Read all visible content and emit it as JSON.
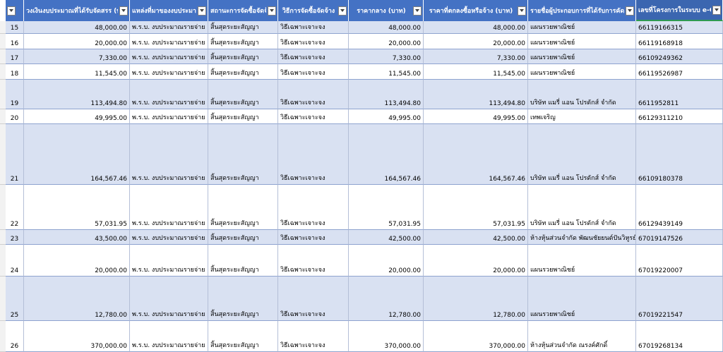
{
  "columns": [
    {
      "key": "budget",
      "label": "วงเงินงบประมาณที่ได้รับจัดสรร (บาท)",
      "align": "r"
    },
    {
      "key": "source",
      "label": "แหล่งที่มาของงบประมาณ",
      "align": "l"
    },
    {
      "key": "status",
      "label": "สถานะการจัดซื้อจัดจ้าง",
      "align": "l"
    },
    {
      "key": "method",
      "label": "วิธีการจัดซื้อจัดจ้าง",
      "align": "l"
    },
    {
      "key": "median",
      "label": "ราคากลาง (บาท)",
      "align": "r"
    },
    {
      "key": "agreed",
      "label": "ราคาที่ตกลงซื้อหรือจ้าง (บาท)",
      "align": "r"
    },
    {
      "key": "vendor",
      "label": "รายชื่อผู้ประกอบการที่ได้รับการคัดเลือก",
      "align": "l"
    },
    {
      "key": "egp",
      "label": "เลขที่โครงการในระบบ e-GP",
      "align": "l"
    }
  ],
  "rows": [
    {
      "no": "15",
      "budget": "48,000.00",
      "source": "พ.ร.บ. งบประมาณรายจ่าย",
      "status": "สิ้นสุดระยะสัญญา",
      "method": "วิธีเฉพาะเจาะจง",
      "median": "48,000.00",
      "agreed": "48,000.00",
      "vendor": "แผนรวยพาณิชย์",
      "egp": "66119166315"
    },
    {
      "no": "16",
      "budget": "20,000.00",
      "source": "พ.ร.บ. งบประมาณรายจ่าย",
      "status": "สิ้นสุดระยะสัญญา",
      "method": "วิธีเฉพาะเจาะจง",
      "median": "20,000.00",
      "agreed": "20,000.00",
      "vendor": "แผนรวยพาณิชย์",
      "egp": "66119168918"
    },
    {
      "no": "17",
      "budget": "7,330.00",
      "source": "พ.ร.บ. งบประมาณรายจ่าย",
      "status": "สิ้นสุดระยะสัญญา",
      "method": "วิธีเฉพาะเจาะจง",
      "median": "7,330.00",
      "agreed": "7,330.00",
      "vendor": "แผนรวยพาณิชย์",
      "egp": "66109249362"
    },
    {
      "no": "18",
      "budget": "11,545.00",
      "source": "พ.ร.บ. งบประมาณรายจ่าย",
      "status": "สิ้นสุดระยะสัญญา",
      "method": "วิธีเฉพาะเจาะจง",
      "median": "11,545.00",
      "agreed": "11,545.00",
      "vendor": "แผนรวยพาณิชย์",
      "egp": "66119526987"
    },
    {
      "no": "19",
      "budget": "113,494.80",
      "source": "พ.ร.บ. งบประมาณรายจ่าย",
      "status": "สิ้นสุดระยะสัญญา",
      "method": "วิธีเฉพาะเจาะจง",
      "median": "113,494.80",
      "agreed": "113,494.80",
      "vendor": "บริษัท แมรี่ แอน โปรดักส์ จำกัด",
      "egp": "6611952811"
    },
    {
      "no": "20",
      "budget": "49,995.00",
      "source": "พ.ร.บ. งบประมาณรายจ่าย",
      "status": "สิ้นสุดระยะสัญญา",
      "method": "วิธีเฉพาะเจาะจง",
      "median": "49,995.00",
      "agreed": "49,995.00",
      "vendor": "เทพเจริญ",
      "egp": "66129311210"
    },
    {
      "no": "21",
      "budget": "164,567.46",
      "source": "พ.ร.บ. งบประมาณรายจ่าย",
      "status": "สิ้นสุดระยะสัญญา",
      "method": "วิธีเฉพาะเจาะจง",
      "median": "164,567.46",
      "agreed": "164,567.46",
      "vendor": "บริษัท แมรี่ แอน โปรดักส์ จำกัด",
      "egp": "66109180378"
    },
    {
      "no": "22",
      "budget": "57,031.95",
      "source": "พ.ร.บ. งบประมาณรายจ่าย",
      "status": "สิ้นสุดระยะสัญญา",
      "method": "วิธีเฉพาะเจาะจง",
      "median": "57,031.95",
      "agreed": "57,031.95",
      "vendor": "บริษัท แมรี่ แอน โปรดักส์ จำกัด",
      "egp": "66129439149"
    },
    {
      "no": "23",
      "budget": "43,500.00",
      "source": "พ.ร.บ. งบประมาณรายจ่าย",
      "status": "สิ้นสุดระยะสัญญา",
      "method": "วิธีเฉพาะเจาะจง",
      "median": "42,500.00",
      "agreed": "42,500.00",
      "vendor": "ห้างหุ้นส่วนจำกัด พัฒนชัยยนต์ปันวิหูรย์",
      "egp": "67019147526"
    },
    {
      "no": "24",
      "budget": "20,000.00",
      "source": "พ.ร.บ. งบประมาณรายจ่าย",
      "status": "สิ้นสุดระยะสัญญา",
      "method": "วิธีเฉพาะเจาะจง",
      "median": "20,000.00",
      "agreed": "20,000.00",
      "vendor": "แผนรวยพาณิชย์",
      "egp": "67019220007"
    },
    {
      "no": "25",
      "budget": "12,780.00",
      "source": "พ.ร.บ. งบประมาณรายจ่าย",
      "status": "สิ้นสุดระยะสัญญา",
      "method": "วิธีเฉพาะเจาะจง",
      "median": "12,780.00",
      "agreed": "12,780.00",
      "vendor": "แผนรวยพาณิชย์",
      "egp": "67019221547"
    },
    {
      "no": "26",
      "budget": "370,000.00",
      "source": "พ.ร.บ. งบประมาณรายจ่าย",
      "status": "สิ้นสุดระยะสัญญา",
      "method": "วิธีเฉพาะเจาะจง",
      "median": "370,000.00",
      "agreed": "370,000.00",
      "vendor": "ห้างหุ้นส่วนจำกัด ณรงค์ศักดิ์",
      "egp": "67019268134"
    }
  ],
  "colors": {
    "header_bg": "#4472c4",
    "band_bg": "#d9e1f2",
    "selected_header_border": "#2f9a52"
  },
  "icons": {
    "header_filter": "dropdown-arrow-icon"
  }
}
